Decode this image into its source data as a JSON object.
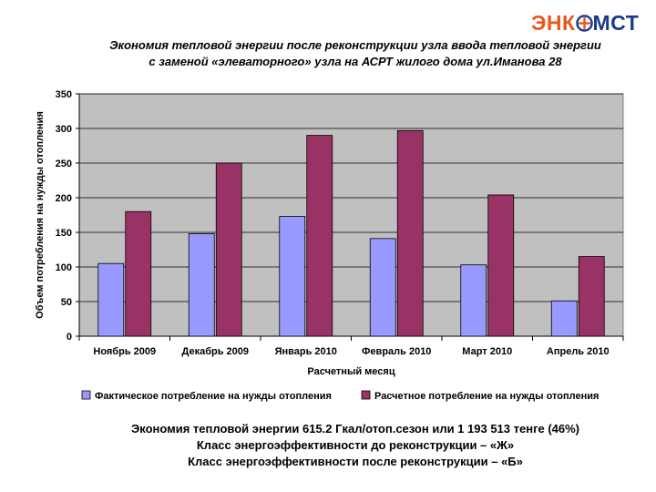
{
  "logo": {
    "part1": "ЭНК",
    "part2": "МСТ"
  },
  "header": {
    "title_line1": "Экономия тепловой энергии после реконструкции узла ввода тепловой энергии",
    "title_line2": "с заменой «элеваторного» узла на АСРТ жилого дома ул.Иманова 28"
  },
  "footer": {
    "line1": "Экономия тепловой энергии 615.2 Гкал/отоп.сезон или 1 193 513 тенге (46%)",
    "line2": "Класс энергоэффективности до реконструкции – «Ж»",
    "line3": "Класс энергоэффективности после реконструкции – «Б»"
  },
  "chart_data": {
    "type": "bar",
    "categories": [
      "Ноябрь 2009",
      "Декабрь 2009",
      "Январь 2010",
      "Февраль 2010",
      "Март 2010",
      "Апрель 2010"
    ],
    "series": [
      {
        "name": "Фактическое потребление на нужды отопления",
        "color": "#9999ff",
        "values": [
          105,
          148,
          173,
          141,
          103,
          51
        ]
      },
      {
        "name": "Расчетное потребление на нужды отопления",
        "color": "#993366",
        "values": [
          180,
          250,
          290,
          297,
          204,
          115
        ]
      }
    ],
    "xlabel": "Расчетный месяц",
    "ylabel": "Объем потребления на нужды отопления",
    "ylim": [
      0,
      350
    ],
    "yticks": [
      0,
      50,
      100,
      150,
      200,
      250,
      300,
      350
    ],
    "plot_background": "#c0c0c0",
    "grid": true,
    "legend": "bottom"
  }
}
